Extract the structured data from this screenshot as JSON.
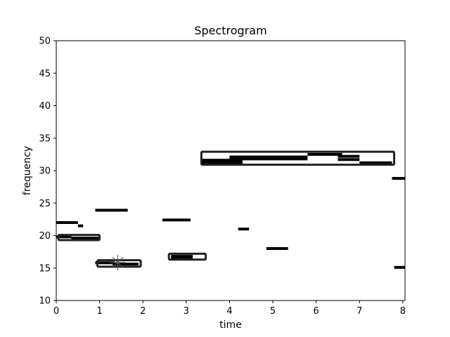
{
  "chart_data": {
    "type": "heatmap",
    "title": "Spectrogram",
    "xlabel": "time",
    "ylabel": "frequency",
    "xlim": [
      0,
      8.05
    ],
    "ylim": [
      10,
      50
    ],
    "xticks": [
      0,
      1,
      2,
      3,
      4,
      5,
      6,
      7,
      8
    ],
    "yticks": [
      10,
      15,
      20,
      25,
      30,
      35,
      40,
      45,
      50
    ],
    "grid": false,
    "colors": {
      "segment": "#000000",
      "frame": "#222222",
      "marker": "#555555"
    },
    "segments": [
      {
        "t0": 0.0,
        "t1": 0.5,
        "f": 22.0
      },
      {
        "t0": 0.5,
        "t1": 0.62,
        "f": 21.5
      },
      {
        "t0": 0.0,
        "t1": 0.35,
        "f": 19.8
      },
      {
        "t0": 0.35,
        "t1": 1.0,
        "f": 19.6
      },
      {
        "t0": 0.9,
        "t1": 1.65,
        "f": 23.9
      },
      {
        "t0": 0.9,
        "t1": 1.35,
        "f": 15.8
      },
      {
        "t0": 1.3,
        "t1": 1.9,
        "f": 15.6
      },
      {
        "t0": 2.45,
        "t1": 3.1,
        "f": 22.4
      },
      {
        "t0": 2.65,
        "t1": 3.15,
        "f": 16.8
      },
      {
        "t0": 2.65,
        "t1": 3.15,
        "f": 16.6
      },
      {
        "t0": 3.35,
        "t1": 4.3,
        "f": 31.6
      },
      {
        "t0": 3.35,
        "t1": 4.3,
        "f": 31.2
      },
      {
        "t0": 4.0,
        "t1": 5.8,
        "f": 32.1
      },
      {
        "t0": 4.0,
        "t1": 5.8,
        "f": 31.8
      },
      {
        "t0": 5.8,
        "t1": 6.6,
        "f": 32.5
      },
      {
        "t0": 6.5,
        "t1": 7.0,
        "f": 32.2
      },
      {
        "t0": 6.5,
        "t1": 7.0,
        "f": 31.7
      },
      {
        "t0": 7.0,
        "t1": 7.75,
        "f": 31.2
      },
      {
        "t0": 4.2,
        "t1": 4.45,
        "f": 21.0
      },
      {
        "t0": 4.85,
        "t1": 5.35,
        "f": 18.0
      },
      {
        "t0": 7.75,
        "t1": 8.15,
        "f": 28.8
      },
      {
        "t0": 7.8,
        "t1": 8.15,
        "f": 15.1
      }
    ],
    "boxes": [
      {
        "t0": 0.05,
        "t1": 1.0,
        "f0": 19.3,
        "f1": 20.1
      },
      {
        "t0": 0.95,
        "t1": 1.95,
        "f0": 15.2,
        "f1": 16.2
      },
      {
        "t0": 2.6,
        "t1": 3.45,
        "f0": 16.3,
        "f1": 17.2
      },
      {
        "t0": 3.35,
        "t1": 7.8,
        "f0": 30.9,
        "f1": 32.9
      }
    ],
    "marker": {
      "t": 1.42,
      "f": 15.85,
      "shape": "asterisk"
    }
  }
}
